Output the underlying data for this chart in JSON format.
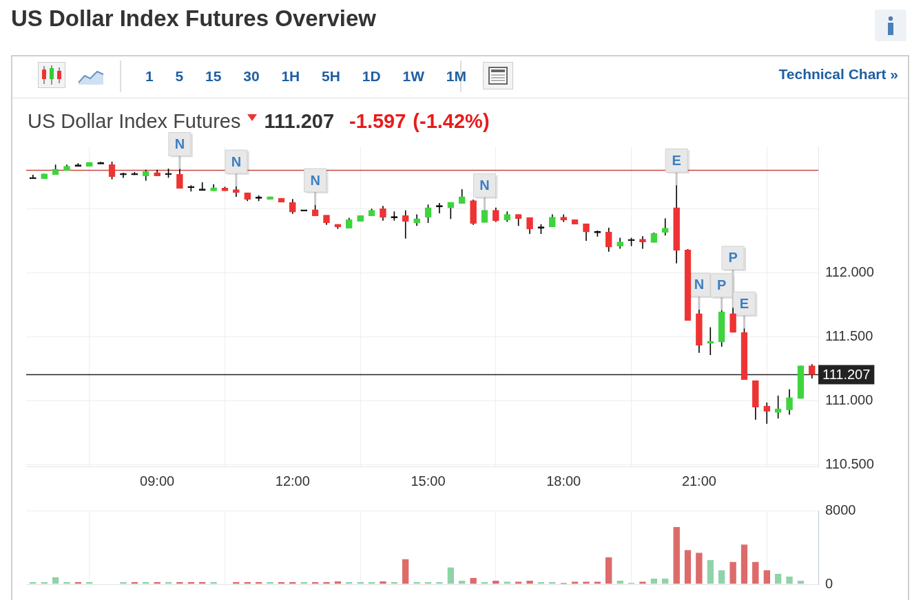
{
  "chart_data": [
    {
      "type": "candlestick",
      "title": "US Dollar Index Futures Overview",
      "subtitle": "US Dollar Index Futures",
      "annotations": [
        "111.207",
        "-1.597",
        "(-1.42%)",
        "1 5 15 30 1H 5H 1D 1W 1M",
        "Technical Chart »",
        {
          "text": "N",
          "x": 9.5,
          "y": 112.814
        },
        {
          "text": "N",
          "x": 10.75,
          "y": 112.677
        },
        {
          "text": "N",
          "x": 12.5,
          "y": 112.532
        },
        {
          "text": "N",
          "x": 16.25,
          "y": 112.491
        },
        {
          "text": "E",
          "x": 20.5,
          "y": 112.686
        },
        {
          "text": "N",
          "x": 21,
          "y": 111.715
        },
        {
          "text": "P",
          "x": 21.5,
          "y": 111.71
        },
        {
          "text": "P",
          "x": 21.75,
          "y": 111.73
        },
        {
          "text": "E",
          "x": 22,
          "y": 111.568
        }
      ],
      "x": [
        6.25,
        6.5,
        6.75,
        7,
        7.25,
        7.5,
        7.75,
        8,
        8.25,
        8.5,
        8.75,
        9,
        9.25,
        9.5,
        9.75,
        10,
        10.25,
        10.5,
        10.75,
        11,
        11.25,
        11.5,
        11.75,
        12,
        12.25,
        12.5,
        12.75,
        13,
        13.25,
        13.5,
        13.75,
        14,
        14.25,
        14.5,
        14.75,
        15,
        15.25,
        15.5,
        15.75,
        16,
        16.25,
        16.5,
        16.75,
        17,
        17.25,
        17.5,
        17.75,
        18,
        18.25,
        18.5,
        18.75,
        19,
        19.25,
        19.5,
        19.75,
        20,
        20.25,
        20.5,
        20.75,
        21,
        21.25,
        21.5,
        21.75,
        22,
        22.25,
        22.5,
        22.75,
        23,
        23.25,
        23.5
      ],
      "ohlc": [
        [
          112.737,
          112.769,
          112.737,
          112.737
        ],
        [
          112.737,
          112.776,
          112.737,
          112.776
        ],
        [
          112.769,
          112.848,
          112.769,
          112.812
        ],
        [
          112.803,
          112.848,
          112.803,
          112.835
        ],
        [
          112.835,
          112.859,
          112.835,
          112.835
        ],
        [
          112.835,
          112.866,
          112.835,
          112.866
        ],
        [
          112.853,
          112.869,
          112.853,
          112.853
        ],
        [
          112.848,
          112.871,
          112.733,
          112.754
        ],
        [
          112.767,
          112.785,
          112.745,
          112.767
        ],
        [
          112.767,
          112.79,
          112.767,
          112.767
        ],
        [
          112.758,
          112.808,
          112.722,
          112.794
        ],
        [
          112.785,
          112.808,
          112.76,
          112.76
        ],
        [
          112.769,
          112.817,
          112.745,
          112.769
        ],
        [
          112.772,
          112.814,
          112.661,
          112.661
        ],
        [
          112.668,
          112.686,
          112.638,
          112.668
        ],
        [
          112.647,
          112.71,
          112.647,
          112.647
        ],
        [
          112.642,
          112.695,
          112.642,
          112.668
        ],
        [
          112.665,
          112.675,
          112.643,
          112.643
        ],
        [
          112.652,
          112.677,
          112.597,
          112.629
        ],
        [
          112.629,
          112.629,
          112.563,
          112.575
        ],
        [
          112.584,
          112.608,
          112.563,
          112.584
        ],
        [
          112.575,
          112.598,
          112.575,
          112.598
        ],
        [
          112.586,
          112.586,
          112.554,
          112.554
        ],
        [
          112.552,
          112.579,
          112.464,
          112.477
        ],
        [
          112.485,
          112.485,
          112.485,
          112.485
        ],
        [
          112.495,
          112.532,
          112.446,
          112.446
        ],
        [
          112.453,
          112.453,
          112.378,
          112.392
        ],
        [
          112.382,
          112.382,
          112.346,
          112.36
        ],
        [
          112.351,
          112.432,
          112.351,
          112.418
        ],
        [
          112.405,
          112.45,
          112.405,
          112.45
        ],
        [
          112.446,
          112.504,
          112.446,
          112.491
        ],
        [
          112.504,
          112.525,
          112.41,
          112.435
        ],
        [
          112.432,
          112.482,
          112.41,
          112.432
        ],
        [
          112.45,
          112.491,
          112.27,
          112.405
        ],
        [
          112.391,
          112.459,
          112.369,
          112.426
        ],
        [
          112.437,
          112.536,
          112.392,
          112.512
        ],
        [
          112.518,
          112.548,
          112.468,
          112.518
        ],
        [
          112.509,
          112.554,
          112.423,
          112.554
        ],
        [
          112.545,
          112.656,
          112.545,
          112.598
        ],
        [
          112.566,
          112.575,
          112.378,
          112.387
        ],
        [
          112.396,
          112.491,
          112.396,
          112.491
        ],
        [
          112.491,
          112.512,
          112.4,
          112.41
        ],
        [
          112.414,
          112.482,
          112.4,
          112.459
        ],
        [
          112.459,
          112.459,
          112.369,
          112.426
        ],
        [
          112.435,
          112.435,
          112.306,
          112.346
        ],
        [
          112.351,
          112.382,
          112.306,
          112.351
        ],
        [
          112.36,
          112.459,
          112.36,
          112.437
        ],
        [
          112.437,
          112.459,
          112.4,
          112.414
        ],
        [
          112.418,
          112.418,
          112.382,
          112.382
        ],
        [
          112.387,
          112.387,
          112.253,
          112.321
        ],
        [
          112.315,
          112.333,
          112.285,
          112.315
        ],
        [
          112.321,
          112.355,
          112.167,
          112.203
        ],
        [
          112.211,
          112.276,
          112.19,
          112.244
        ],
        [
          112.253,
          112.276,
          112.211,
          112.253
        ],
        [
          112.265,
          112.289,
          112.19,
          112.244
        ],
        [
          112.24,
          112.317,
          112.24,
          112.31
        ],
        [
          112.319,
          112.428,
          112.294,
          112.351
        ],
        [
          112.512,
          112.686,
          112.077,
          112.177
        ],
        [
          112.181,
          112.188,
          111.629,
          111.629
        ],
        [
          111.684,
          111.715,
          111.378,
          111.437
        ],
        [
          111.45,
          111.577,
          111.36,
          111.469
        ],
        [
          111.461,
          111.71,
          111.425,
          111.697
        ],
        [
          111.684,
          111.73,
          111.536,
          111.536
        ],
        [
          111.536,
          111.568,
          111.168,
          111.168
        ],
        [
          111.16,
          111.16,
          110.855,
          110.953
        ],
        [
          110.962,
          110.989,
          110.823,
          110.921
        ],
        [
          110.912,
          111.043,
          110.864,
          110.939
        ],
        [
          110.93,
          111.093,
          110.894,
          111.028
        ],
        [
          111.02,
          111.276,
          111.02,
          111.276
        ],
        [
          111.276,
          111.289,
          111.177,
          111.207
        ]
      ],
      "colors": [
        "#000000",
        "#3ed43e",
        "#3ed43e",
        "#3ed43e",
        "#000000",
        "#3ed43e",
        "#000000",
        "#ee3333",
        "#000000",
        "#000000",
        "#3ed43e",
        "#ee3333",
        "#000000",
        "#ee3333",
        "#000000",
        "#000000",
        "#3ed43e",
        "#ee3333",
        "#ee3333",
        "#ee3333",
        "#000000",
        "#3ed43e",
        "#ee3333",
        "#ee3333",
        "#000000",
        "#ee3333",
        "#ee3333",
        "#ee3333",
        "#3ed43e",
        "#3ed43e",
        "#3ed43e",
        "#ee3333",
        "#000000",
        "#ee3333",
        "#3ed43e",
        "#3ed43e",
        "#000000",
        "#3ed43e",
        "#3ed43e",
        "#ee3333",
        "#3ed43e",
        "#ee3333",
        "#3ed43e",
        "#ee3333",
        "#ee3333",
        "#000000",
        "#3ed43e",
        "#ee3333",
        "#ee3333",
        "#ee3333",
        "#000000",
        "#ee3333",
        "#3ed43e",
        "#000000",
        "#ee3333",
        "#3ed43e",
        "#3ed43e",
        "#ee3333",
        "#ee3333",
        "#ee3333",
        "#3ed43e",
        "#3ed43e",
        "#ee3333",
        "#ee3333",
        "#ee3333",
        "#ee3333",
        "#3ed43e",
        "#3ed43e",
        "#3ed43e",
        "#ee3333"
      ],
      "xlim": [
        6.1,
        23.64
      ],
      "xticks": [
        {
          "value": 9,
          "label": "09:00"
        },
        {
          "value": 12,
          "label": "12:00"
        },
        {
          "value": 15,
          "label": "15:00"
        },
        {
          "value": 18,
          "label": "18:00"
        },
        {
          "value": 21,
          "label": "21:00"
        }
      ],
      "ylim": [
        110.489,
        112.989
      ],
      "yticks": [
        {
          "value": 110.5,
          "label": "110.500"
        },
        {
          "value": 111,
          "label": "111.000"
        },
        {
          "value": 111.5,
          "label": "111.500"
        },
        {
          "value": 112,
          "label": "112.000"
        },
        {
          "value": 112.5,
          "label": null
        }
      ],
      "ref_lines": [
        {
          "axis": "y",
          "value": 112.804,
          "color": "#c9453f"
        },
        {
          "axis": "y",
          "value": 111.207,
          "label": "111.207",
          "color": "#222222"
        }
      ],
      "grid": true
    },
    {
      "type": "bar",
      "x": [
        6.25,
        6.5,
        6.75,
        7,
        7.25,
        7.5,
        7.75,
        8,
        8.25,
        8.5,
        8.75,
        9,
        9.25,
        9.5,
        9.75,
        10,
        10.25,
        10.5,
        10.75,
        11,
        11.25,
        11.5,
        11.75,
        12,
        12.25,
        12.5,
        12.75,
        13,
        13.25,
        13.5,
        13.75,
        14,
        14.25,
        14.5,
        14.75,
        15,
        15.25,
        15.5,
        15.75,
        16,
        16.25,
        16.5,
        16.75,
        17,
        17.25,
        17.5,
        17.75,
        18,
        18.25,
        18.5,
        18.75,
        19,
        19.25,
        19.5,
        19.75,
        20,
        20.25,
        20.5,
        20.75,
        21,
        21.25,
        21.5,
        21.75,
        22,
        22.25,
        22.5,
        22.75,
        23,
        23.25
      ],
      "values": [
        200,
        200,
        750,
        200,
        200,
        200,
        null,
        null,
        200,
        200,
        200,
        200,
        200,
        200,
        200,
        200,
        200,
        null,
        200,
        200,
        200,
        200,
        200,
        200,
        200,
        200,
        200,
        300,
        200,
        200,
        200,
        300,
        200,
        2700,
        200,
        200,
        200,
        1800,
        350,
        650,
        200,
        350,
        250,
        250,
        350,
        200,
        200,
        100,
        250,
        250,
        250,
        2900,
        350,
        150,
        250,
        600,
        600,
        6200,
        3700,
        3400,
        2600,
        1500,
        2400,
        4300,
        2400,
        1500,
        1100,
        800,
        350
      ],
      "colors": [
        "#8fd3a8",
        "#8fd3a8",
        "#8fd3a8",
        "#8fd3a8",
        "#dc6b6a",
        "#8fd3a8",
        "#8fd3a8",
        "#8fd3a8",
        "#8fd3a8",
        "#dc6b6a",
        "#8fd3a8",
        "#dc6b6a",
        "#8fd3a8",
        "#dc6b6a",
        "#dc6b6a",
        "#dc6b6a",
        "#8fd3a8",
        "#8fd3a8",
        "#dc6b6a",
        "#dc6b6a",
        "#dc6b6a",
        "#8fd3a8",
        "#dc6b6a",
        "#dc6b6a",
        "#8fd3a8",
        "#dc6b6a",
        "#dc6b6a",
        "#dc6b6a",
        "#8fd3a8",
        "#8fd3a8",
        "#8fd3a8",
        "#dc6b6a",
        "#8fd3a8",
        "#dc6b6a",
        "#8fd3a8",
        "#8fd3a8",
        "#8fd3a8",
        "#8fd3a8",
        "#8fd3a8",
        "#dc6b6a",
        "#8fd3a8",
        "#dc6b6a",
        "#8fd3a8",
        "#dc6b6a",
        "#dc6b6a",
        "#8fd3a8",
        "#8fd3a8",
        "#dc6b6a",
        "#dc6b6a",
        "#dc6b6a",
        "#dc6b6a",
        "#dc6b6a",
        "#8fd3a8",
        "#8fd3a8",
        "#dc6b6a",
        "#8fd3a8",
        "#8fd3a8",
        "#dc6b6a",
        "#dc6b6a",
        "#dc6b6a",
        "#8fd3a8",
        "#8fd3a8",
        "#dc6b6a",
        "#dc6b6a",
        "#dc6b6a",
        "#dc6b6a",
        "#8fd3a8",
        "#8fd3a8",
        "#8fd3a8"
      ],
      "xlim": [
        6.1,
        23.64
      ],
      "xticks": [
        {
          "value": 9,
          "label": null
        },
        {
          "value": 12,
          "label": null
        },
        {
          "value": 15,
          "label": null
        },
        {
          "value": 18,
          "label": null
        },
        {
          "value": 21,
          "label": null
        }
      ],
      "ylim": [
        0,
        8000
      ],
      "yticks": [
        0,
        8000
      ],
      "grid": true,
      "tick_labels": "y"
    }
  ]
}
